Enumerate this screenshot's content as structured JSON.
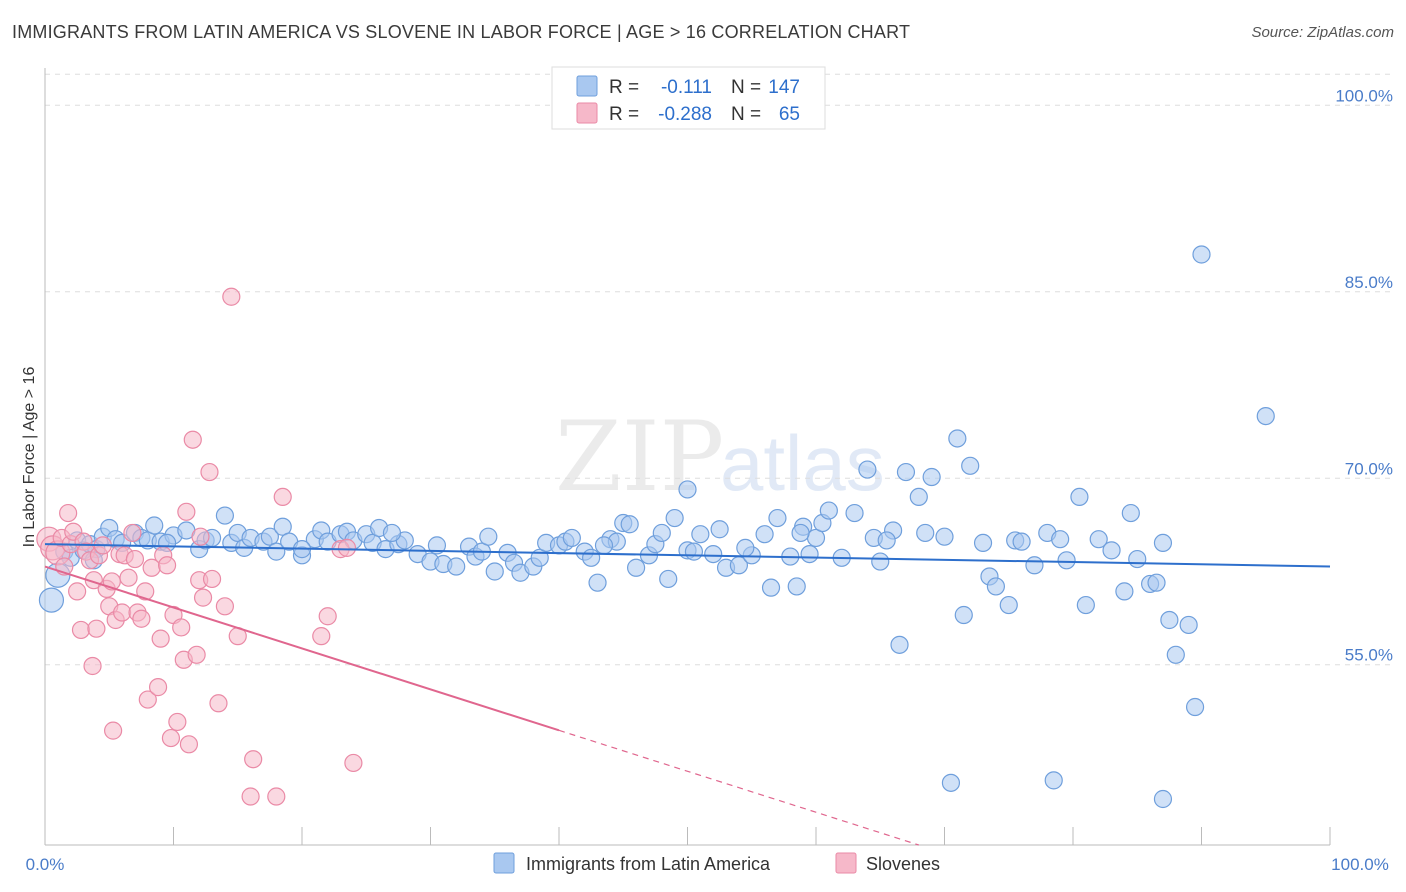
{
  "header": {
    "title": "IMMIGRANTS FROM LATIN AMERICA VS SLOVENE IN LABOR FORCE | AGE > 16 CORRELATION CHART",
    "source": "Source: ZipAtlas.com"
  },
  "watermark": {
    "zip": "ZIP",
    "atlas": "atlas"
  },
  "colors": {
    "blue_fill": "#a9c8f0",
    "blue_stroke": "#6f9fdc",
    "blue_line": "#2d6fcc",
    "pink_fill": "#f6b8c9",
    "pink_stroke": "#ea8aa6",
    "pink_line": "#e0668e",
    "axis_label": "#4a7cc9",
    "grid": "#dddddd"
  },
  "chart_data": {
    "type": "scatter",
    "title": "IMMIGRANTS FROM LATIN AMERICA VS SLOVENE IN LABOR FORCE | AGE > 16 CORRELATION CHART",
    "xlabel": "",
    "ylabel": "In Labor Force | Age > 16",
    "xlim": [
      0,
      100
    ],
    "ylim": [
      40.5,
      103
    ],
    "x_tick_labels": [
      "0.0%",
      "100.0%"
    ],
    "y_ticks": [
      55,
      70,
      85,
      100
    ],
    "y_tick_labels": [
      "55.0%",
      "70.0%",
      "85.0%",
      "100.0%"
    ],
    "grid": true,
    "legend": {
      "position": "top-center",
      "entries": [
        {
          "r_label": "R =",
          "r_value": "-0.111",
          "n_label": "N =",
          "n_value": "147"
        },
        {
          "r_label": "R =",
          "r_value": "-0.288",
          "n_label": "N =",
          "n_value": "65"
        }
      ]
    },
    "bottom_legend": [
      "Immigrants from Latin America",
      "Slovenes"
    ],
    "series": [
      {
        "name": "Immigrants from Latin America",
        "color": "#a9c8f0",
        "trend": {
          "x0": 0,
          "y0": 64.7,
          "x1": 100,
          "y1": 62.9,
          "dash_from": 100
        },
        "points": [
          [
            0.5,
            60.2
          ],
          [
            1.0,
            62.2
          ],
          [
            1.5,
            64.1
          ],
          [
            2.0,
            63.6
          ],
          [
            2.5,
            65.0
          ],
          [
            3.0,
            64.2
          ],
          [
            3.5,
            64.7
          ],
          [
            4.0,
            64.3
          ],
          [
            4.5,
            65.3
          ],
          [
            5.0,
            66.0
          ],
          [
            5.5,
            65.1
          ],
          [
            6.0,
            64.8
          ],
          [
            7.0,
            65.6
          ],
          [
            7.5,
            65.2
          ],
          [
            8.0,
            65.0
          ],
          [
            8.5,
            66.2
          ],
          [
            9.0,
            64.9
          ],
          [
            10.0,
            65.4
          ],
          [
            11.0,
            65.8
          ],
          [
            12.0,
            64.3
          ],
          [
            12.5,
            65.0
          ],
          [
            13.0,
            65.2
          ],
          [
            14.0,
            67.0
          ],
          [
            14.5,
            64.8
          ],
          [
            15.0,
            65.6
          ],
          [
            15.5,
            64.4
          ],
          [
            16.0,
            65.2
          ],
          [
            17.0,
            64.9
          ],
          [
            17.5,
            65.3
          ],
          [
            18.0,
            64.1
          ],
          [
            18.5,
            66.1
          ],
          [
            19.0,
            64.9
          ],
          [
            20.0,
            63.8
          ],
          [
            21.0,
            65.1
          ],
          [
            21.5,
            65.8
          ],
          [
            22.0,
            64.9
          ],
          [
            23.0,
            65.5
          ],
          [
            23.5,
            65.7
          ],
          [
            24.0,
            65.0
          ],
          [
            25.0,
            65.5
          ],
          [
            25.5,
            64.8
          ],
          [
            26.0,
            66.0
          ],
          [
            26.5,
            64.3
          ],
          [
            27.5,
            64.7
          ],
          [
            28.0,
            65.0
          ],
          [
            29.0,
            63.9
          ],
          [
            30.0,
            63.3
          ],
          [
            30.5,
            64.6
          ],
          [
            31.0,
            63.1
          ],
          [
            32.0,
            62.9
          ],
          [
            33.0,
            64.5
          ],
          [
            33.5,
            63.7
          ],
          [
            34.0,
            64.1
          ],
          [
            34.5,
            65.3
          ],
          [
            35.0,
            62.5
          ],
          [
            36.0,
            64.0
          ],
          [
            36.5,
            63.2
          ],
          [
            37.0,
            62.4
          ],
          [
            38.0,
            62.9
          ],
          [
            38.5,
            63.6
          ],
          [
            39.0,
            64.8
          ],
          [
            40.0,
            64.6
          ],
          [
            40.5,
            64.9
          ],
          [
            41.0,
            65.2
          ],
          [
            42.0,
            64.1
          ],
          [
            42.5,
            63.6
          ],
          [
            43.0,
            61.6
          ],
          [
            44.0,
            65.1
          ],
          [
            44.5,
            64.9
          ],
          [
            45.0,
            66.4
          ],
          [
            45.5,
            66.3
          ],
          [
            46.0,
            62.8
          ],
          [
            47.0,
            63.8
          ],
          [
            47.5,
            64.7
          ],
          [
            48.0,
            65.6
          ],
          [
            48.5,
            61.9
          ],
          [
            49.0,
            66.8
          ],
          [
            50.0,
            64.2
          ],
          [
            50.5,
            64.1
          ],
          [
            51.0,
            65.5
          ],
          [
            52.0,
            63.9
          ],
          [
            52.5,
            65.9
          ],
          [
            53.0,
            62.8
          ],
          [
            54.0,
            63.0
          ],
          [
            55.0,
            63.8
          ],
          [
            56.0,
            65.5
          ],
          [
            56.5,
            61.2
          ],
          [
            57.0,
            66.8
          ],
          [
            58.0,
            63.7
          ],
          [
            58.5,
            61.3
          ],
          [
            59.0,
            66.1
          ],
          [
            60.0,
            65.2
          ],
          [
            60.5,
            66.4
          ],
          [
            61.0,
            67.4
          ],
          [
            62.0,
            63.6
          ],
          [
            63.0,
            67.2
          ],
          [
            64.0,
            70.7
          ],
          [
            64.5,
            65.2
          ],
          [
            65.0,
            63.3
          ],
          [
            66.0,
            65.8
          ],
          [
            66.5,
            56.6
          ],
          [
            67.0,
            70.5
          ],
          [
            68.0,
            68.5
          ],
          [
            68.5,
            65.6
          ],
          [
            69.0,
            70.1
          ],
          [
            70.0,
            65.3
          ],
          [
            71.0,
            73.2
          ],
          [
            71.5,
            59.0
          ],
          [
            72.0,
            71.0
          ],
          [
            73.0,
            64.8
          ],
          [
            73.5,
            62.1
          ],
          [
            74.0,
            61.3
          ],
          [
            75.0,
            59.8
          ],
          [
            75.5,
            65.0
          ],
          [
            76.0,
            64.9
          ],
          [
            77.0,
            63.0
          ],
          [
            78.0,
            65.6
          ],
          [
            79.0,
            65.1
          ],
          [
            79.5,
            63.4
          ],
          [
            80.5,
            68.5
          ],
          [
            81.0,
            59.8
          ],
          [
            82.0,
            65.1
          ],
          [
            83.0,
            64.2
          ],
          [
            84.0,
            60.9
          ],
          [
            84.5,
            67.2
          ],
          [
            85.0,
            63.5
          ],
          [
            86.0,
            61.5
          ],
          [
            87.0,
            64.8
          ],
          [
            87.5,
            58.6
          ],
          [
            88.0,
            55.8
          ],
          [
            89.0,
            58.2
          ],
          [
            89.5,
            51.6
          ],
          [
            90.0,
            88.0
          ],
          [
            95.0,
            75.0
          ],
          [
            20.0,
            64.3
          ],
          [
            27.0,
            65.6
          ],
          [
            54.5,
            64.4
          ],
          [
            59.5,
            63.9
          ],
          [
            65.5,
            65.0
          ],
          [
            43.5,
            64.6
          ],
          [
            58.8,
            65.6
          ],
          [
            9.5,
            64.8
          ],
          [
            3.8,
            63.4
          ],
          [
            70.5,
            45.5
          ],
          [
            78.5,
            45.7
          ],
          [
            86.5,
            61.6
          ],
          [
            87.0,
            44.2
          ],
          [
            50.0,
            69.1
          ]
        ]
      },
      {
        "name": "Slovenes",
        "color": "#f6b8c9",
        "trend": {
          "x0": 0,
          "y0": 62.9,
          "x1": 68,
          "y1": 40.5,
          "dash_from": 40
        },
        "points": [
          [
            0.3,
            65.1
          ],
          [
            0.6,
            64.4
          ],
          [
            1.0,
            64.0
          ],
          [
            1.3,
            65.2
          ],
          [
            1.5,
            62.9
          ],
          [
            1.8,
            67.2
          ],
          [
            2.0,
            64.7
          ],
          [
            2.2,
            65.7
          ],
          [
            2.5,
            60.9
          ],
          [
            2.8,
            57.8
          ],
          [
            3.0,
            64.9
          ],
          [
            3.2,
            64.1
          ],
          [
            3.5,
            63.4
          ],
          [
            3.8,
            61.8
          ],
          [
            4.0,
            57.9
          ],
          [
            4.2,
            63.8
          ],
          [
            4.5,
            64.6
          ],
          [
            4.8,
            61.1
          ],
          [
            5.0,
            59.7
          ],
          [
            5.2,
            61.7
          ],
          [
            5.5,
            58.6
          ],
          [
            5.8,
            63.9
          ],
          [
            6.0,
            59.2
          ],
          [
            6.2,
            63.8
          ],
          [
            6.5,
            62.0
          ],
          [
            6.8,
            65.6
          ],
          [
            7.0,
            63.5
          ],
          [
            7.2,
            59.2
          ],
          [
            7.5,
            58.7
          ],
          [
            7.8,
            60.9
          ],
          [
            8.0,
            52.2
          ],
          [
            8.3,
            62.8
          ],
          [
            8.8,
            53.2
          ],
          [
            9.0,
            57.1
          ],
          [
            9.2,
            63.8
          ],
          [
            9.5,
            63.0
          ],
          [
            9.8,
            49.1
          ],
          [
            10.0,
            59.0
          ],
          [
            10.3,
            50.4
          ],
          [
            10.6,
            58.0
          ],
          [
            10.8,
            55.4
          ],
          [
            11.0,
            67.3
          ],
          [
            11.2,
            48.6
          ],
          [
            11.5,
            73.1
          ],
          [
            11.8,
            55.8
          ],
          [
            12.0,
            61.8
          ],
          [
            12.3,
            60.4
          ],
          [
            12.8,
            70.5
          ],
          [
            13.0,
            61.9
          ],
          [
            13.5,
            51.9
          ],
          [
            14.0,
            59.7
          ],
          [
            14.5,
            84.6
          ],
          [
            15.0,
            57.3
          ],
          [
            16.0,
            44.4
          ],
          [
            16.2,
            47.4
          ],
          [
            18.0,
            44.4
          ],
          [
            18.5,
            68.5
          ],
          [
            21.5,
            57.3
          ],
          [
            22.0,
            58.9
          ],
          [
            23.0,
            64.3
          ],
          [
            23.5,
            64.4
          ],
          [
            24.0,
            47.1
          ],
          [
            12.1,
            65.3
          ],
          [
            5.3,
            49.7
          ],
          [
            3.7,
            54.9
          ]
        ]
      }
    ]
  }
}
